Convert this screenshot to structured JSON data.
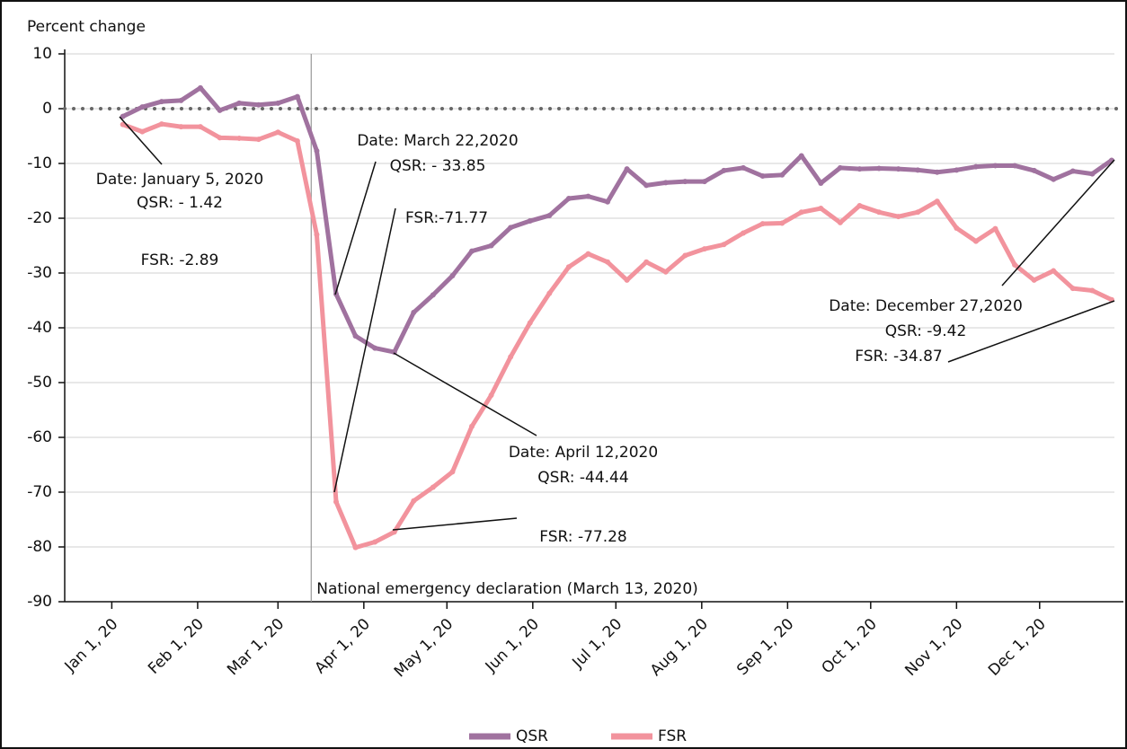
{
  "chart_data": {
    "type": "line",
    "y_label": "Percent change",
    "x": [
      "2020-01-05",
      "2020-01-12",
      "2020-01-19",
      "2020-01-26",
      "2020-02-02",
      "2020-02-09",
      "2020-02-16",
      "2020-02-23",
      "2020-03-01",
      "2020-03-08",
      "2020-03-15",
      "2020-03-22",
      "2020-03-29",
      "2020-04-05",
      "2020-04-12",
      "2020-04-19",
      "2020-04-26",
      "2020-05-03",
      "2020-05-10",
      "2020-05-17",
      "2020-05-24",
      "2020-05-31",
      "2020-06-07",
      "2020-06-14",
      "2020-06-21",
      "2020-06-28",
      "2020-07-05",
      "2020-07-12",
      "2020-07-19",
      "2020-07-26",
      "2020-08-02",
      "2020-08-09",
      "2020-08-16",
      "2020-08-23",
      "2020-08-30",
      "2020-09-06",
      "2020-09-13",
      "2020-09-20",
      "2020-09-27",
      "2020-10-04",
      "2020-10-11",
      "2020-10-18",
      "2020-10-25",
      "2020-11-01",
      "2020-11-08",
      "2020-11-15",
      "2020-11-22",
      "2020-11-29",
      "2020-12-06",
      "2020-12-13",
      "2020-12-20",
      "2020-12-27"
    ],
    "series": [
      {
        "name": "QSR",
        "color": "#a0729f",
        "values": [
          -1.42,
          0.3,
          1.3,
          1.5,
          3.8,
          -0.3,
          1.0,
          0.7,
          1.0,
          2.2,
          -7.7,
          -33.85,
          -41.5,
          -43.7,
          -44.44,
          -37.2,
          -34,
          -30.5,
          -26,
          -25,
          -21.7,
          -20.5,
          -19.5,
          -16.4,
          -16,
          -17,
          -11,
          -14,
          -13.5,
          -13.3,
          -13.3,
          -11.3,
          -10.8,
          -12.3,
          -12.1,
          -8.6,
          -13.6,
          -10.8,
          -11,
          -10.9,
          -11,
          -11.2,
          -11.6,
          -11.2,
          -10.6,
          -10.4,
          -10.4,
          -11.3,
          -12.9,
          -11.4,
          -11.9,
          -9.42
        ]
      },
      {
        "name": "FSR",
        "color": "#f2939d",
        "values": [
          -2.89,
          -4.2,
          -2.8,
          -3.3,
          -3.3,
          -5.3,
          -5.4,
          -5.6,
          -4.3,
          -5.9,
          -23,
          -71.77,
          -80.1,
          -79.1,
          -77.28,
          -71.6,
          -69.1,
          -66.3,
          -58,
          -52.3,
          -45.3,
          -39.1,
          -33.7,
          -28.9,
          -26.5,
          -28,
          -31.3,
          -28,
          -29.8,
          -26.8,
          -25.6,
          -24.8,
          -22.7,
          -21,
          -20.9,
          -18.9,
          -18.2,
          -20.8,
          -17.7,
          -18.9,
          -19.7,
          -18.9,
          -16.9,
          -21.8,
          -24.2,
          -21.9,
          -28.5,
          -31.3,
          -29.6,
          -32.8,
          -33.2,
          -34.87
        ]
      }
    ],
    "xlim": [
      "2019-12-15",
      "2020-12-28"
    ],
    "xticks": [
      {
        "value": "2020-01-01",
        "label": "Jan 1, 20"
      },
      {
        "value": "2020-02-01",
        "label": "Feb 1, 20"
      },
      {
        "value": "2020-03-01",
        "label": "Mar 1, 20"
      },
      {
        "value": "2020-04-01",
        "label": "Apr 1, 20"
      },
      {
        "value": "2020-05-01",
        "label": "May 1, 20"
      },
      {
        "value": "2020-06-01",
        "label": "Jun 1, 20"
      },
      {
        "value": "2020-07-01",
        "label": "Jul 1, 20"
      },
      {
        "value": "2020-08-01",
        "label": "Aug 1, 20"
      },
      {
        "value": "2020-09-01",
        "label": "Sep 1, 20"
      },
      {
        "value": "2020-10-01",
        "label": "Oct 1, 20"
      },
      {
        "value": "2020-11-01",
        "label": "Nov 1, 20"
      },
      {
        "value": "2020-12-01",
        "label": "Dec 1, 20"
      }
    ],
    "ylim": [
      -90,
      10
    ],
    "yticks": [
      -90,
      -80,
      -70,
      -60,
      -50,
      -40,
      -30,
      -20,
      -10,
      0,
      10
    ],
    "grid": true,
    "reference_line": 0,
    "event": {
      "x": "2020-03-13",
      "label": "National emergency declaration (March 13, 2020)"
    },
    "annotations": [
      {
        "lines": [
          "Date: January 5, 2020",
          "QSR: - 1.42",
          "FSR: -2.89"
        ]
      },
      {
        "lines": [
          "Date: March 22,2020",
          "QSR: - 33.85",
          "FSR:-71.77"
        ]
      },
      {
        "lines": [
          "Date: April 12,2020",
          "QSR: -44.44",
          "FSR: -77.28"
        ]
      },
      {
        "lines": [
          "Date: December 27,2020",
          "QSR: -9.42",
          "FSR: -34.87"
        ]
      }
    ],
    "legend": "bottom"
  }
}
